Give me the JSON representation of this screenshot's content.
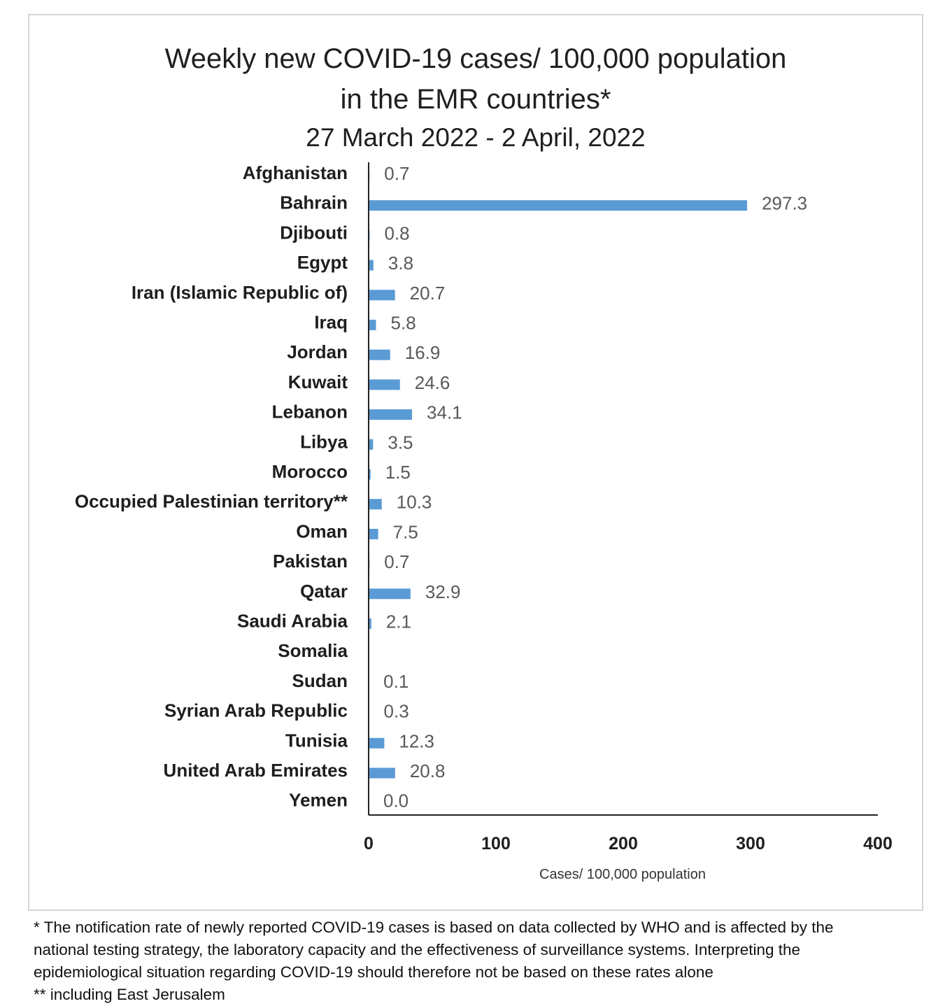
{
  "chart_data": {
    "type": "bar",
    "orientation": "horizontal",
    "title": "Weekly new COVID-19 cases/ 100,000 population",
    "title_line2": "in the EMR countries*",
    "subtitle": "27 March 2022 - 2 April, 2022",
    "xlabel": "Cases/ 100,000 population",
    "xlim": [
      0,
      400
    ],
    "xticks": [
      "0",
      "100",
      "200",
      "300",
      "400"
    ],
    "bar_color": "#5b9bd5",
    "categories": [
      "Afghanistan",
      "Bahrain",
      "Djibouti",
      "Egypt",
      "Iran (Islamic Republic of)",
      "Iraq",
      "Jordan",
      "Kuwait",
      "Lebanon",
      "Libya",
      "Morocco",
      "Occupied Palestinian territory**",
      "Oman",
      "Pakistan",
      "Qatar",
      "Saudi Arabia",
      "Somalia",
      "Sudan",
      "Syrian Arab Republic",
      "Tunisia",
      "United Arab Emirates",
      "Yemen"
    ],
    "values": [
      0.7,
      297.3,
      0.8,
      3.8,
      20.7,
      5.8,
      16.9,
      24.6,
      34.1,
      3.5,
      1.5,
      10.3,
      7.5,
      0.7,
      32.9,
      2.1,
      null,
      0.1,
      0.3,
      12.3,
      20.8,
      0.0
    ],
    "value_labels": [
      "0.7",
      "297.3",
      "0.8",
      "3.8",
      "20.7",
      "5.8",
      "16.9",
      "24.6",
      "34.1",
      "3.5",
      "1.5",
      "10.3",
      "7.5",
      "0.7",
      "32.9",
      "2.1",
      "",
      "0.1",
      "0.3",
      "12.3",
      "20.8",
      "0.0"
    ],
    "grid": false,
    "legend": "none"
  },
  "footnotes": {
    "line1": "* The notification rate of newly reported COVID-19 cases is based on data collected by WHO and is affected by the",
    "line2": "national testing strategy, the laboratory capacity and the effectiveness of surveillance systems. Interpreting the",
    "line3": "epidemiological situation regarding COVID-19 should therefore not be based on these rates alone",
    "line4": "** including East Jerusalem"
  }
}
